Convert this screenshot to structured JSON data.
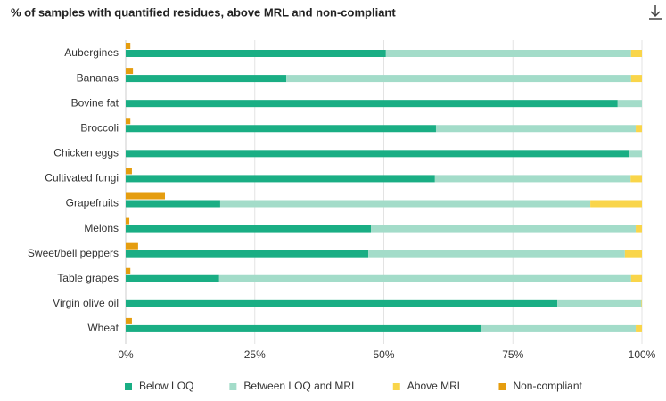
{
  "chart_data": {
    "type": "stacked-bar-horizontal",
    "title": "% of samples with quantified residues, above MRL and non-compliant",
    "categories": [
      "Aubergines",
      "Bananas",
      "Bovine fat",
      "Broccoli",
      "Chicken eggs",
      "Cultivated fungi",
      "Grapefruits",
      "Melons",
      "Sweet/bell peppers",
      "Table grapes",
      "Virgin olive oil",
      "Wheat"
    ],
    "series": [
      {
        "name": "Below LOQ",
        "color": "#1aae84",
        "stack": "main",
        "values": [
          50.4,
          31.1,
          95.3,
          60.1,
          97.6,
          59.9,
          18.3,
          47.5,
          47.0,
          18.1,
          83.6,
          68.9
        ]
      },
      {
        "name": "Between LOQ and MRL",
        "color": "#a3dcc9",
        "stack": "main",
        "values": [
          47.5,
          66.8,
          4.7,
          38.7,
          2.4,
          37.9,
          71.7,
          51.3,
          49.7,
          79.8,
          16.3,
          29.9
        ]
      },
      {
        "name": "Above MRL",
        "color": "#f9d54a",
        "stack": "main",
        "values": [
          2.1,
          2.1,
          0,
          1.2,
          0,
          2.2,
          10.0,
          1.2,
          3.3,
          2.1,
          0.1,
          1.2
        ]
      },
      {
        "name": "Non-compliant",
        "color": "#e59d0f",
        "stack": "nc",
        "values": [
          0.9,
          1.4,
          0,
          0.9,
          0,
          1.2,
          7.6,
          0.7,
          2.4,
          0.9,
          0,
          1.2
        ]
      }
    ],
    "xlim": [
      0,
      100
    ],
    "xticks": [
      {
        "value": 0,
        "label": "0%"
      },
      {
        "value": 25,
        "label": "25%"
      },
      {
        "value": 50,
        "label": "50%"
      },
      {
        "value": 75,
        "label": "75%"
      },
      {
        "value": 100,
        "label": "100%"
      }
    ],
    "grid": true,
    "legend": "bottom"
  }
}
